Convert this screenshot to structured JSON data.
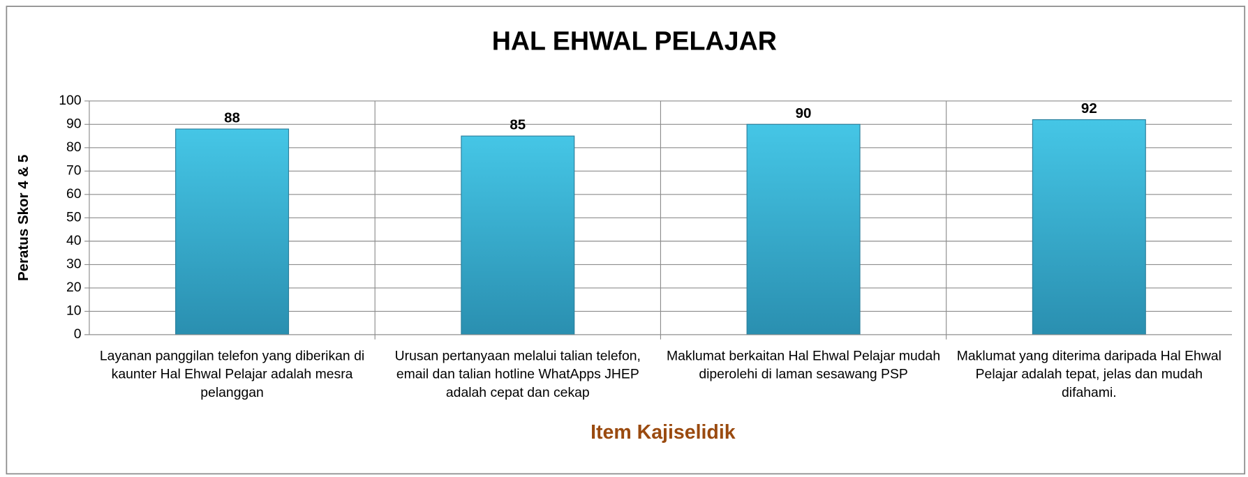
{
  "chart_data": {
    "type": "bar",
    "title": "HAL EHWAL PELAJAR",
    "categories": [
      "Layanan panggilan telefon yang diberikan di kaunter Hal Ehwal Pelajar adalah mesra pelanggan",
      "Urusan pertanyaan melalui talian telefon, email dan talian hotline WhatApps JHEP adalah cepat dan cekap",
      "Maklumat berkaitan  Hal Ehwal Pelajar mudah diperolehi di laman sesawang PSP",
      "Maklumat yang diterima daripada Hal Ehwal Pelajar adalah tepat, jelas dan mudah difahami."
    ],
    "values": [
      88,
      85,
      90,
      92
    ],
    "color": "#35aed3",
    "x_label": "Item Kajiselidik",
    "y_label": "Peratus Skor 4 & 5",
    "ylim": [
      0,
      100
    ],
    "yticks": [
      0,
      10,
      20,
      30,
      40,
      50,
      60,
      70,
      80,
      90,
      100
    ],
    "grid": true
  }
}
